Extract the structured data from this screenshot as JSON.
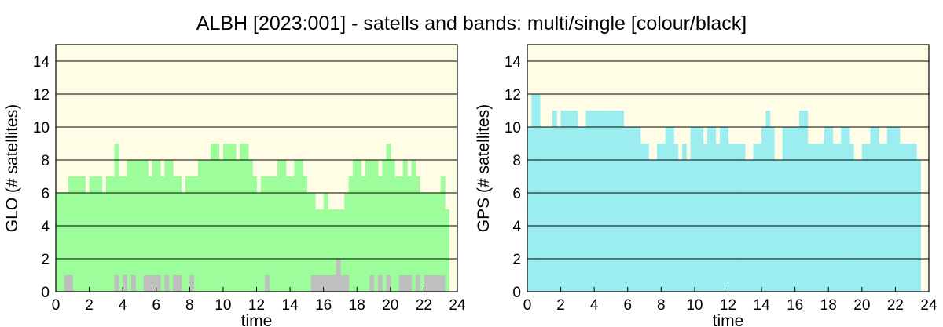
{
  "figure": {
    "title": "ALBH [2023:001] - satells and bands: multi/single [colour/black]"
  },
  "colors": {
    "plot_background": "#fffde6",
    "glo_multi": "#9dfd9b",
    "glo_single": "#bfbfbf",
    "gps_multi": "#9bedef",
    "grid": "#000000"
  },
  "chart_data": [
    {
      "type": "area",
      "name": "glo-chart",
      "xlabel": "time",
      "ylabel": "GLO (# satellites)",
      "xlim": [
        0,
        24
      ],
      "ylim": [
        0,
        15
      ],
      "xticks": [
        0,
        2,
        4,
        6,
        8,
        10,
        12,
        14,
        16,
        18,
        20,
        22,
        24
      ],
      "yticks": [
        0,
        2,
        4,
        6,
        8,
        10,
        12,
        14
      ],
      "grid": "horizontal",
      "bin_hours": 0.25,
      "series": [
        {
          "name": "multi-band",
          "color": "#9dfd9b",
          "values": [
            6,
            6,
            6,
            7,
            7,
            7,
            7,
            6,
            7,
            7,
            7,
            6,
            7,
            7,
            9,
            7,
            7,
            8,
            8,
            8,
            8,
            8,
            7,
            8,
            8,
            7,
            8,
            8,
            7,
            7,
            6,
            7,
            7,
            7,
            8,
            8,
            8,
            9,
            9,
            8,
            9,
            9,
            9,
            8,
            9,
            9,
            8,
            7,
            6,
            7,
            7,
            7,
            7,
            8,
            8,
            7,
            7,
            8,
            8,
            7,
            6,
            6,
            5,
            5,
            6,
            5,
            5,
            5,
            5,
            6,
            7,
            8,
            8,
            7,
            8,
            8,
            8,
            7,
            8,
            9,
            8,
            7,
            7,
            8,
            7,
            8,
            7,
            6,
            6,
            6,
            6,
            6,
            7,
            5
          ]
        },
        {
          "name": "single-band",
          "color": "#bfbfbf",
          "values": [
            0,
            0,
            1,
            1,
            0,
            0,
            0,
            0,
            0,
            0,
            0,
            0,
            0,
            0,
            1,
            0,
            1,
            0,
            1,
            0,
            0,
            1,
            1,
            1,
            1,
            0,
            1,
            0,
            1,
            1,
            0,
            0,
            1,
            0,
            0,
            0,
            0,
            0,
            0,
            0,
            0,
            0,
            0,
            0,
            0,
            0,
            0,
            0,
            0,
            0,
            1,
            0,
            0,
            0,
            0,
            0,
            0,
            0,
            0,
            0,
            0,
            1,
            1,
            1,
            1,
            1,
            1,
            2,
            1,
            1,
            0,
            0,
            0,
            0,
            0,
            1,
            0,
            1,
            0,
            1,
            0,
            0,
            1,
            1,
            1,
            0,
            1,
            0,
            1,
            1,
            1,
            1,
            1,
            0
          ]
        }
      ]
    },
    {
      "type": "area",
      "name": "gps-chart",
      "xlabel": "time",
      "ylabel": "GPS (# satellites)",
      "xlim": [
        0,
        24
      ],
      "ylim": [
        0,
        15
      ],
      "xticks": [
        0,
        2,
        4,
        6,
        8,
        10,
        12,
        14,
        16,
        18,
        20,
        22,
        24
      ],
      "yticks": [
        0,
        2,
        4,
        6,
        8,
        10,
        12,
        14
      ],
      "grid": "horizontal",
      "bin_hours": 0.25,
      "series": [
        {
          "name": "multi-band",
          "color": "#9bedef",
          "values": [
            10,
            12,
            12,
            10,
            10,
            10,
            11,
            10,
            11,
            11,
            11,
            11,
            10,
            10,
            11,
            11,
            11,
            11,
            11,
            11,
            11,
            11,
            11,
            10,
            10,
            10,
            10,
            9,
            9,
            8,
            8,
            9,
            9,
            10,
            10,
            9,
            8,
            9,
            8,
            10,
            10,
            10,
            9,
            10,
            10,
            9,
            10,
            10,
            9,
            9,
            9,
            9,
            8,
            8,
            9,
            9,
            10,
            11,
            10,
            8,
            8,
            10,
            10,
            10,
            10,
            11,
            11,
            9,
            9,
            9,
            9,
            10,
            10,
            9,
            9,
            10,
            10,
            9,
            8,
            8,
            9,
            9,
            10,
            10,
            9,
            9,
            10,
            10,
            10,
            9,
            9,
            9,
            9,
            8
          ]
        }
      ]
    }
  ]
}
